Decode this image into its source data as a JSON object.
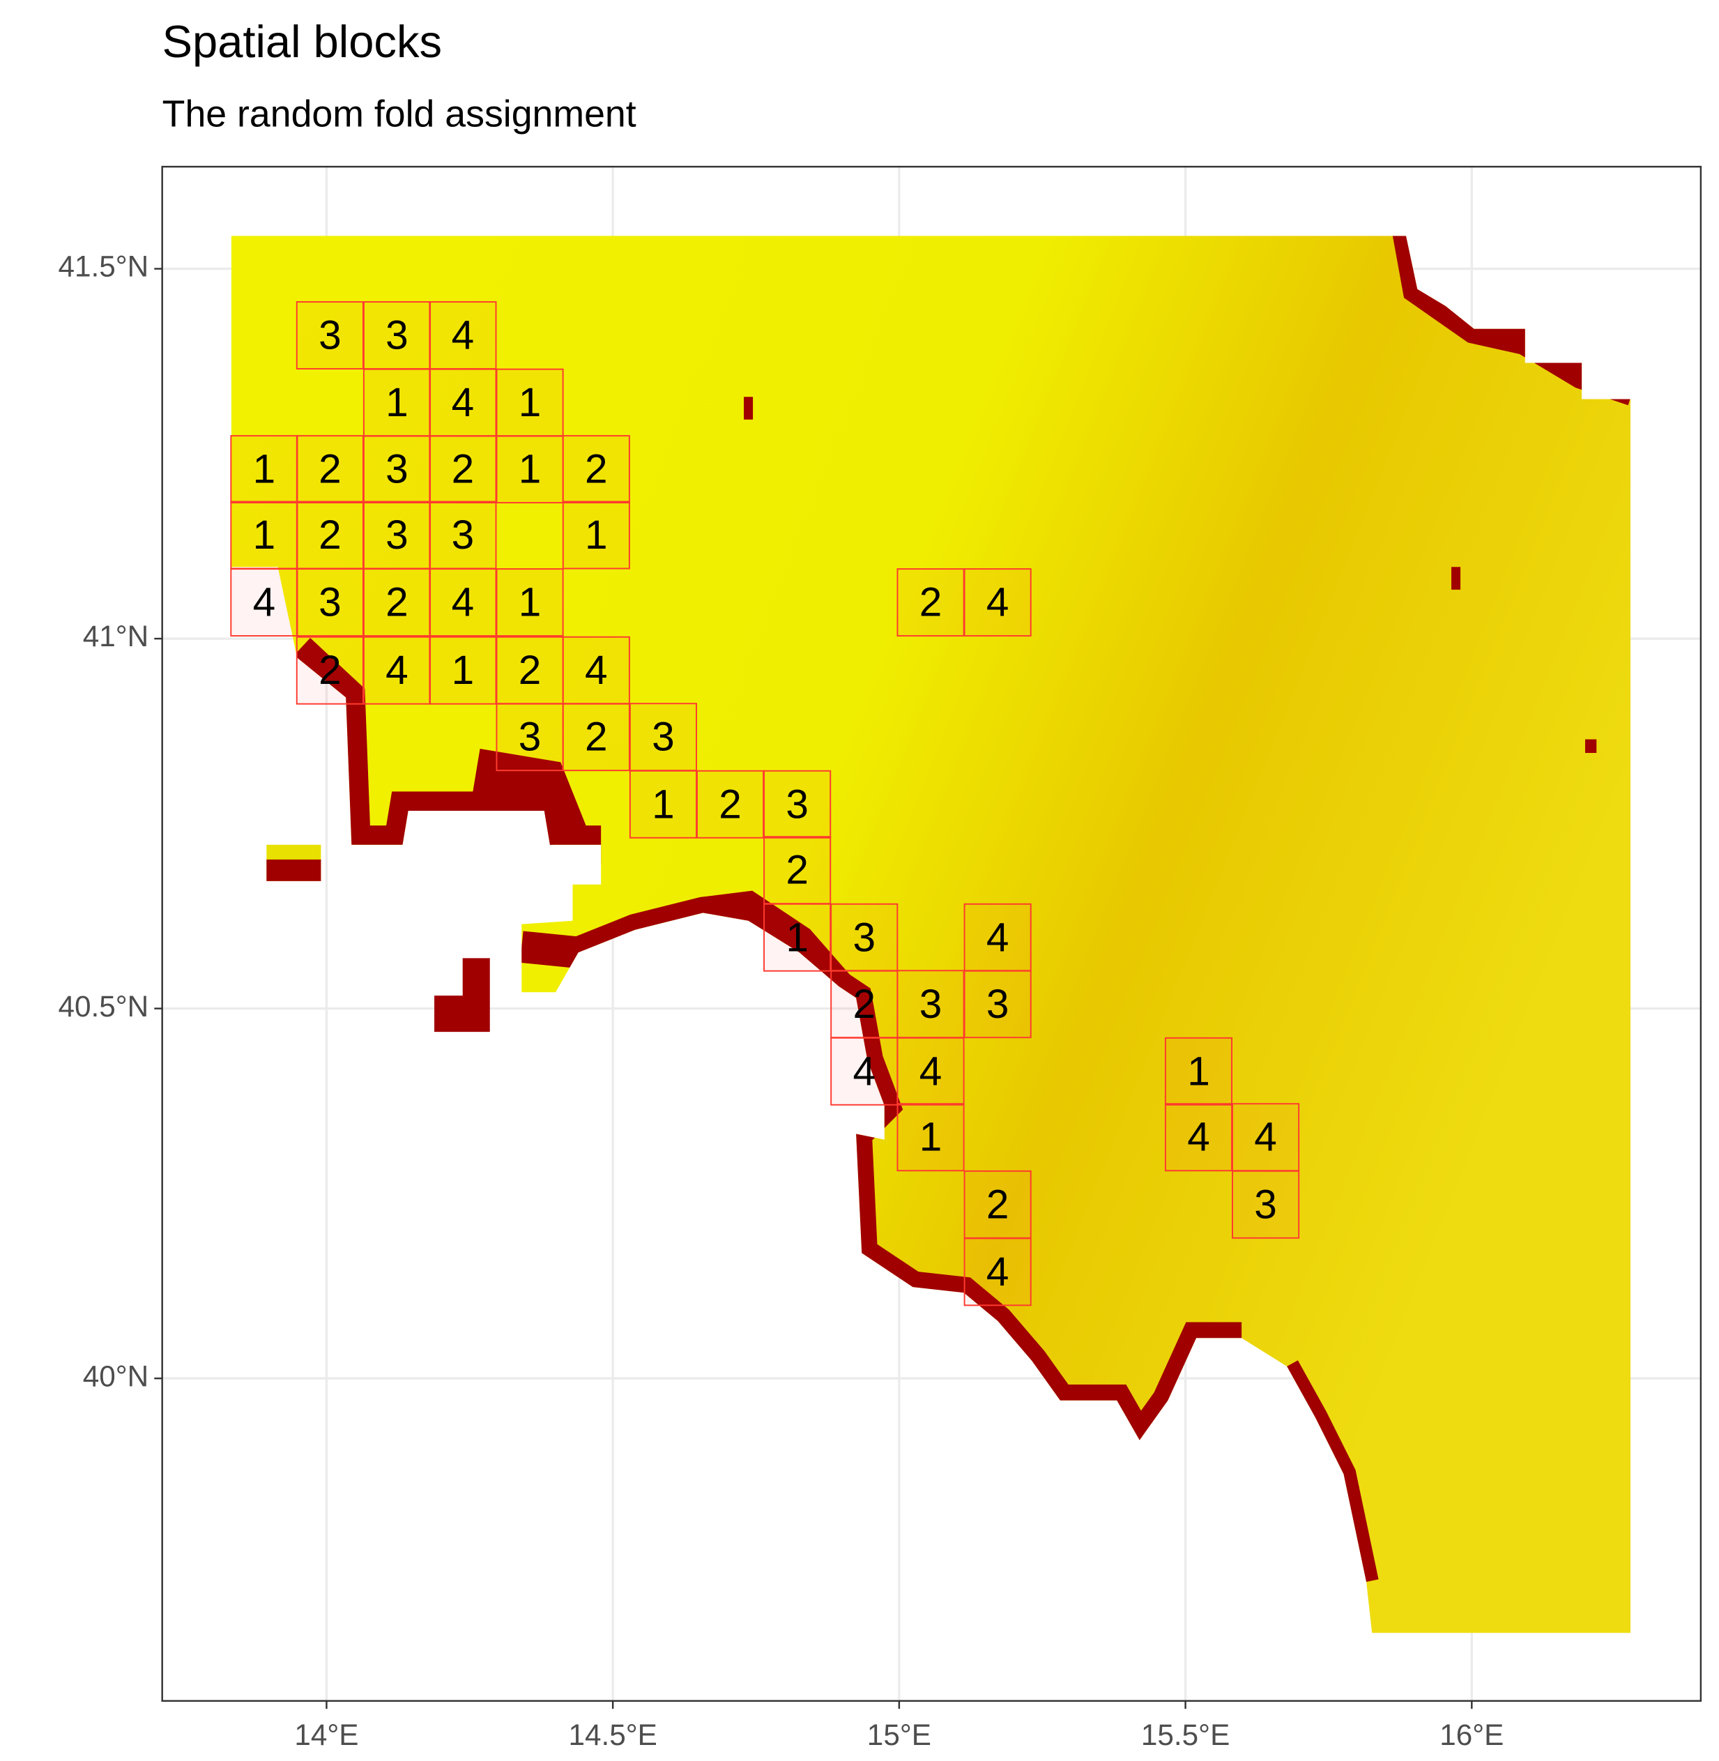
{
  "chart_data": {
    "type": "map",
    "title": "Spatial blocks",
    "subtitle": "The random fold assignment",
    "xlim": [
      13.713,
      16.4
    ],
    "ylim": [
      39.564,
      41.638
    ],
    "xticks": [
      {
        "value": 14,
        "label": "14°E"
      },
      {
        "value": 14.5,
        "label": "14.5°E"
      },
      {
        "value": 15,
        "label": "15°E"
      },
      {
        "value": 15.5,
        "label": "15.5°E"
      },
      {
        "value": 16,
        "label": "16°E"
      }
    ],
    "yticks": [
      {
        "value": 40,
        "label": "40°N"
      },
      {
        "value": 40.5,
        "label": "40.5°N"
      },
      {
        "value": 41,
        "label": "41°N"
      },
      {
        "value": 41.5,
        "label": "41.5°N"
      }
    ],
    "grid": true,
    "block_color": "#ff3b2f",
    "blocks": {
      "lon": [
        14.006,
        14.123,
        14.238,
        14.123,
        14.238,
        14.355,
        13.891,
        14.006,
        14.123,
        14.238,
        14.355,
        14.471,
        13.891,
        14.006,
        14.123,
        14.238,
        14.471,
        13.891,
        14.006,
        14.123,
        14.238,
        14.355,
        15.055,
        15.172,
        14.006,
        14.123,
        14.238,
        14.355,
        14.471,
        14.355,
        14.471,
        14.588,
        14.588,
        14.705,
        14.822,
        14.822,
        14.822,
        14.939,
        15.172,
        14.939,
        15.055,
        15.172,
        14.939,
        15.055,
        15.523,
        15.055,
        15.523,
        15.64,
        15.172,
        15.64,
        15.172
      ],
      "lat": [
        41.41,
        41.41,
        41.41,
        41.319,
        41.319,
        41.319,
        41.229,
        41.229,
        41.229,
        41.229,
        41.229,
        41.229,
        41.14,
        41.14,
        41.14,
        41.14,
        41.14,
        41.049,
        41.049,
        41.049,
        41.049,
        41.049,
        41.049,
        41.049,
        40.957,
        40.957,
        40.957,
        40.957,
        40.957,
        40.867,
        40.867,
        40.867,
        40.776,
        40.776,
        40.776,
        40.687,
        40.596,
        40.596,
        40.596,
        40.506,
        40.506,
        40.506,
        40.415,
        40.415,
        40.415,
        40.326,
        40.326,
        40.326,
        40.235,
        40.235,
        40.144
      ],
      "fold": [
        3,
        3,
        4,
        1,
        4,
        1,
        1,
        2,
        3,
        2,
        1,
        2,
        1,
        2,
        3,
        3,
        1,
        4,
        3,
        2,
        4,
        1,
        2,
        4,
        2,
        4,
        1,
        2,
        4,
        3,
        2,
        3,
        1,
        2,
        3,
        2,
        1,
        3,
        4,
        2,
        3,
        3,
        4,
        4,
        1,
        1,
        4,
        4,
        2,
        3,
        4
      ]
    }
  }
}
